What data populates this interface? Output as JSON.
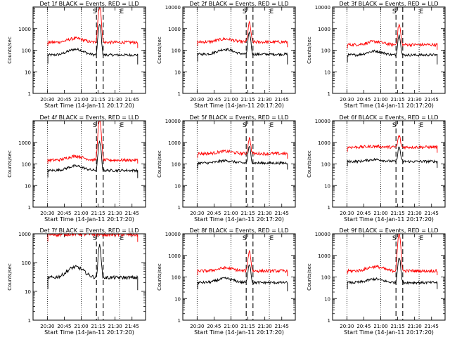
{
  "colors": {
    "events": "#000000",
    "lld": "#ff0000",
    "axis": "#000000"
  },
  "chart_data": [
    {
      "type": "line",
      "title": "Det 1f BLACK = Events, RED = LLD",
      "xlabel": "Start Time (14-Jan-11 20:17:20)",
      "ylabel": "Counts/sec",
      "yscale": "log",
      "ylim": [
        1,
        10000
      ],
      "yticks": [
        "1",
        "10",
        "100",
        "1000"
      ],
      "xticks": [
        "20:30",
        "20:45",
        "21:00",
        "21:15",
        "21:30",
        "21:45"
      ],
      "markers": [
        "S",
        "E"
      ],
      "series": [
        {
          "name": "Events",
          "base": 60,
          "hump": 110,
          "peak": 1500,
          "start_level": 40,
          "end_level": 40
        },
        {
          "name": "LLD",
          "base": 230,
          "hump": 350,
          "peak": 10000,
          "start_level": 260,
          "end_level": 230
        }
      ]
    },
    {
      "type": "line",
      "title": "Det 2f BLACK = Events, RED = LLD",
      "xlabel": "Start Time (14-Jan-11 20:17:20)",
      "ylabel": "Counts/sec",
      "yscale": "log",
      "ylim": [
        1,
        10000
      ],
      "yticks": [
        "1",
        "10",
        "100",
        "1000",
        "10000"
      ],
      "xticks": [
        "20:30",
        "20:45",
        "21:00",
        "21:15",
        "21:30",
        "21:45"
      ],
      "markers": [
        "S",
        "E"
      ],
      "series": [
        {
          "name": "Events",
          "base": 65,
          "hump": 110,
          "peak": 600,
          "start_level": 50,
          "end_level": 40
        },
        {
          "name": "LLD",
          "base": 240,
          "hump": 330,
          "peak": 1800,
          "start_level": 260,
          "end_level": 250
        }
      ]
    },
    {
      "type": "line",
      "title": "Det 3f BLACK = Events, RED = LLD",
      "xlabel": "Start Time (14-Jan-11 20:17:20)",
      "ylabel": "Counts/sec",
      "yscale": "log",
      "ylim": [
        1,
        10000
      ],
      "yticks": [
        "1",
        "10",
        "100",
        "1000",
        "10000"
      ],
      "xticks": [
        "20:30",
        "20:45",
        "21:00",
        "21:15",
        "21:30",
        "21:45"
      ],
      "markers": [
        "S",
        "E"
      ],
      "series": [
        {
          "name": "Events",
          "base": 60,
          "hump": 90,
          "peak": 500,
          "start_level": 45,
          "end_level": 40
        },
        {
          "name": "LLD",
          "base": 180,
          "hump": 250,
          "peak": 1500,
          "start_level": 200,
          "end_level": 190
        }
      ]
    },
    {
      "type": "line",
      "title": "Det 4f BLACK = Events, RED = LLD",
      "xlabel": "Start Time (14-Jan-11 20:17:20)",
      "ylabel": "Counts/sec",
      "yscale": "log",
      "ylim": [
        1,
        10000
      ],
      "yticks": [
        "1",
        "10",
        "100",
        "1000"
      ],
      "xticks": [
        "20:30",
        "20:45",
        "21:00",
        "21:15",
        "21:30",
        "21:45"
      ],
      "markers": [
        "S",
        "E"
      ],
      "series": [
        {
          "name": "Events",
          "base": 50,
          "hump": 80,
          "peak": 1000,
          "start_level": 40,
          "end_level": 40
        },
        {
          "name": "LLD",
          "base": 150,
          "hump": 230,
          "peak": 10000,
          "start_level": 170,
          "end_level": 190
        }
      ]
    },
    {
      "type": "line",
      "title": "Det 5f BLACK = Events, RED = LLD",
      "xlabel": "Start Time (14-Jan-11 20:17:20)",
      "ylabel": "Counts/sec",
      "yscale": "log",
      "ylim": [
        1,
        10000
      ],
      "yticks": [
        "1",
        "10",
        "100",
        "1000",
        "10000"
      ],
      "xticks": [
        "20:30",
        "20:45",
        "21:00",
        "21:15",
        "21:30",
        "21:45"
      ],
      "markers": [
        "S",
        "E"
      ],
      "series": [
        {
          "name": "Events",
          "base": 110,
          "hump": 140,
          "peak": 600,
          "start_level": 100,
          "end_level": 100
        },
        {
          "name": "LLD",
          "base": 300,
          "hump": 380,
          "peak": 1500,
          "start_level": 320,
          "end_level": 320
        }
      ]
    },
    {
      "type": "line",
      "title": "Det 6f BLACK = Events, RED = LLD",
      "xlabel": "Start Time (14-Jan-11 20:17:20)",
      "ylabel": "Counts/sec",
      "yscale": "log",
      "ylim": [
        1,
        10000
      ],
      "yticks": [
        "1",
        "10",
        "100",
        "1000",
        "10000"
      ],
      "xticks": [
        "20:30",
        "20:45",
        "21:00",
        "21:15",
        "21:30",
        "21:45"
      ],
      "markers": [
        "S",
        "E"
      ],
      "series": [
        {
          "name": "Events",
          "base": 130,
          "hump": 160,
          "peak": 600,
          "start_level": 130,
          "end_level": 120
        },
        {
          "name": "LLD",
          "base": 600,
          "hump": 650,
          "peak": 2000,
          "start_level": 620,
          "end_level": 600
        }
      ]
    },
    {
      "type": "line",
      "title": "Det 7f BLACK = Events, RED = LLD",
      "xlabel": "Start Time (14-Jan-11 20:17:20)",
      "ylabel": "Counts/sec",
      "yscale": "log",
      "ylim": [
        1,
        1000
      ],
      "yticks": [
        "1",
        "10",
        "100",
        "1000"
      ],
      "xticks": [
        "20:30",
        "20:45",
        "21:00",
        "21:15",
        "21:30",
        "21:45"
      ],
      "markers": [
        "S",
        "E"
      ],
      "series": [
        {
          "name": "Events",
          "base": 30,
          "hump": 70,
          "peak": 400,
          "start_level": 20,
          "end_level": 20
        },
        {
          "name": "LLD",
          "base": 950,
          "hump": 1000,
          "peak": 1000,
          "start_level": 900,
          "end_level": 950
        }
      ]
    },
    {
      "type": "line",
      "title": "Det 8f BLACK = Events, RED = LLD",
      "xlabel": "Start Time (14-Jan-11 20:17:20)",
      "ylabel": "Counts/sec",
      "yscale": "log",
      "ylim": [
        1,
        10000
      ],
      "yticks": [
        "1",
        "10",
        "100",
        "1000",
        "10000"
      ],
      "xticks": [
        "20:30",
        "20:45",
        "21:00",
        "21:15",
        "21:30",
        "21:45"
      ],
      "markers": [
        "S",
        "E"
      ],
      "series": [
        {
          "name": "Events",
          "base": 55,
          "hump": 85,
          "peak": 400,
          "start_level": 45,
          "end_level": 40
        },
        {
          "name": "LLD",
          "base": 190,
          "hump": 260,
          "peak": 1500,
          "start_level": 200,
          "end_level": 200
        }
      ]
    },
    {
      "type": "line",
      "title": "Det 9f BLACK = Events, RED = LLD",
      "xlabel": "Start Time (14-Jan-11 20:17:20)",
      "ylabel": "Counts/sec",
      "yscale": "log",
      "ylim": [
        1,
        10000
      ],
      "yticks": [
        "1",
        "10",
        "100",
        "1000",
        "10000"
      ],
      "xticks": [
        "20:30",
        "20:45",
        "21:00",
        "21:15",
        "21:30",
        "21:45"
      ],
      "markers": [
        "S",
        "E"
      ],
      "series": [
        {
          "name": "Events",
          "base": 55,
          "hump": 80,
          "peak": 800,
          "start_level": 45,
          "end_level": 50
        },
        {
          "name": "LLD",
          "base": 190,
          "hump": 300,
          "peak": 9000,
          "start_level": 230,
          "end_level": 220
        }
      ]
    }
  ]
}
